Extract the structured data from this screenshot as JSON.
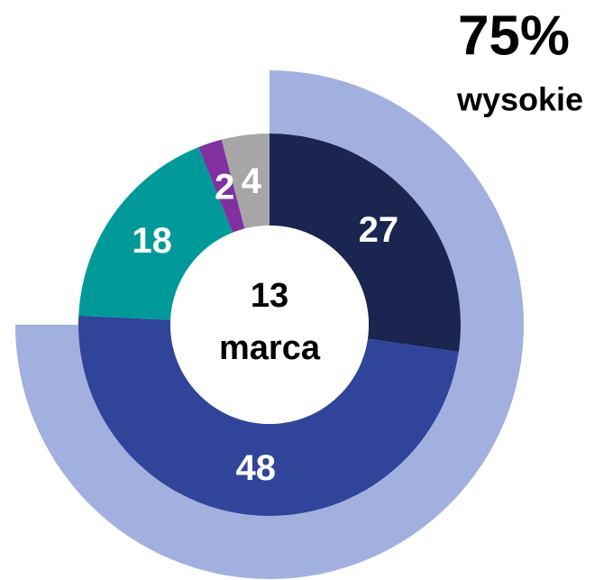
{
  "chart_data": {
    "type": "pie",
    "values": [
      27,
      48,
      18,
      2,
      4
    ],
    "colors": [
      "#1a2550",
      "#30449a",
      "#009999",
      "#8030a0",
      "#a6a6a6"
    ],
    "center_label": [
      "13",
      "marca"
    ],
    "outer": {
      "name": "wysokie",
      "value": 75,
      "value_label": "75%",
      "color": "#a2b0e0"
    }
  }
}
